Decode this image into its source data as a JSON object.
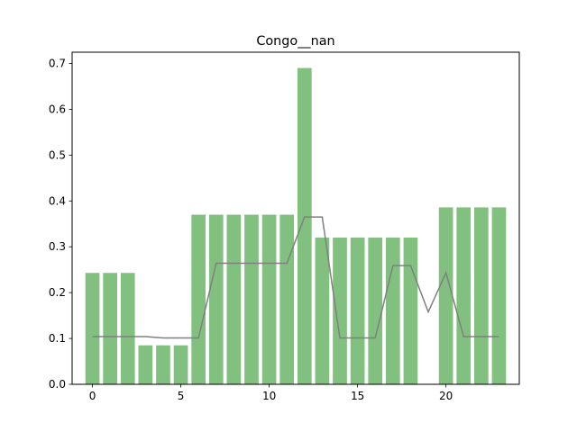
{
  "chart_data": {
    "type": "bar",
    "title": "Congo__nan",
    "xlabel": "",
    "ylabel": "",
    "x": [
      0,
      1,
      2,
      3,
      4,
      5,
      6,
      7,
      8,
      9,
      10,
      11,
      12,
      13,
      14,
      15,
      16,
      17,
      18,
      19,
      20,
      21,
      22,
      23
    ],
    "bar_values": [
      0.243,
      0.243,
      0.243,
      0.085,
      0.085,
      0.085,
      0.37,
      0.37,
      0.37,
      0.37,
      0.37,
      0.37,
      0.69,
      0.32,
      0.32,
      0.32,
      0.32,
      0.32,
      0.32,
      0.0,
      0.386,
      0.386,
      0.386,
      0.386
    ],
    "line_values": [
      0.104,
      0.104,
      0.104,
      0.104,
      0.101,
      0.101,
      0.101,
      0.264,
      0.264,
      0.264,
      0.264,
      0.264,
      0.365,
      0.365,
      0.101,
      0.101,
      0.101,
      0.259,
      0.259,
      0.158,
      0.243,
      0.104,
      0.104,
      0.104
    ],
    "xlim": [
      -1.15,
      24.15
    ],
    "ylim": [
      0,
      0.7245
    ],
    "xticks": [
      0,
      5,
      10,
      15,
      20
    ],
    "yticks": [
      0.0,
      0.1,
      0.2,
      0.3,
      0.4,
      0.5,
      0.6,
      0.7
    ],
    "bar_color": "#81c07f",
    "line_color": "#808080",
    "grid": false
  }
}
